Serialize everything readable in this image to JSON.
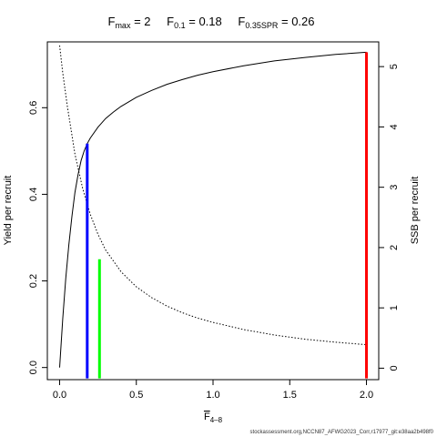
{
  "chart_data": {
    "type": "line",
    "title_parts": {
      "fmax_value": "2",
      "f01_value": "0.18",
      "f035_value": "0.26"
    },
    "xlabel": "F",
    "xlabel_sub": "4–8",
    "ylabel_left": "Yield per recruit",
    "ylabel_right": "SSB per recruit",
    "xlim": [
      -0.08,
      2.08
    ],
    "ylim_left": [
      -0.028,
      0.752
    ],
    "ylim_right": [
      -0.19,
      5.41
    ],
    "x_ticks": [
      0,
      0.5,
      1,
      1.5,
      2
    ],
    "x_tick_labels": [
      "0.0",
      "0.5",
      "1.0",
      "1.5",
      "2.0"
    ],
    "y_left_ticks": [
      0,
      0.2,
      0.4,
      0.6
    ],
    "y_left_tick_labels": [
      "0.0",
      "0.2",
      "0.4",
      "0.6"
    ],
    "y_right_ticks": [
      0,
      1,
      2,
      3,
      4,
      5
    ],
    "y_right_tick_labels": [
      "0",
      "1",
      "2",
      "3",
      "4",
      "5"
    ],
    "series": [
      {
        "name": "Yield per recruit",
        "axis": "left",
        "style": "solid",
        "color": "#000000",
        "x": [
          0,
          0.02,
          0.04,
          0.06,
          0.08,
          0.1,
          0.12,
          0.14,
          0.16,
          0.18,
          0.2,
          0.25,
          0.3,
          0.35,
          0.4,
          0.5,
          0.6,
          0.7,
          0.8,
          0.9,
          1.0,
          1.2,
          1.4,
          1.6,
          1.8,
          2.0
        ],
        "y": [
          0.0,
          0.112,
          0.205,
          0.283,
          0.349,
          0.404,
          0.445,
          0.478,
          0.5,
          0.517,
          0.53,
          0.555,
          0.575,
          0.59,
          0.603,
          0.624,
          0.64,
          0.654,
          0.665,
          0.675,
          0.683,
          0.697,
          0.708,
          0.716,
          0.723,
          0.728
        ]
      },
      {
        "name": "SSB per recruit",
        "axis": "right",
        "style": "dotted",
        "color": "#000000",
        "x": [
          0,
          0.02,
          0.05,
          0.1,
          0.15,
          0.2,
          0.25,
          0.3,
          0.4,
          0.5,
          0.6,
          0.7,
          0.8,
          0.9,
          1.0,
          1.2,
          1.4,
          1.6,
          1.8,
          2.0
        ],
        "y": [
          5.35,
          4.9,
          4.35,
          3.55,
          2.98,
          2.55,
          2.22,
          1.96,
          1.6,
          1.35,
          1.17,
          1.03,
          0.92,
          0.83,
          0.76,
          0.64,
          0.55,
          0.48,
          0.43,
          0.39
        ]
      }
    ],
    "reference_lines": [
      {
        "name": "F0.1",
        "x": 0.18,
        "y_top": 0.517,
        "color": "#0000ff"
      },
      {
        "name": "F0.35SPR",
        "x": 0.26,
        "y_top": 0.25,
        "color": "#00ff00"
      },
      {
        "name": "Fmax",
        "x": 2.0,
        "y_top": 0.728,
        "color": "#ff0000"
      }
    ]
  },
  "footer_note": "stockassessment.org,NCCN87_AFWG2023_Corr,r17977_git:e38aa2b498f0"
}
